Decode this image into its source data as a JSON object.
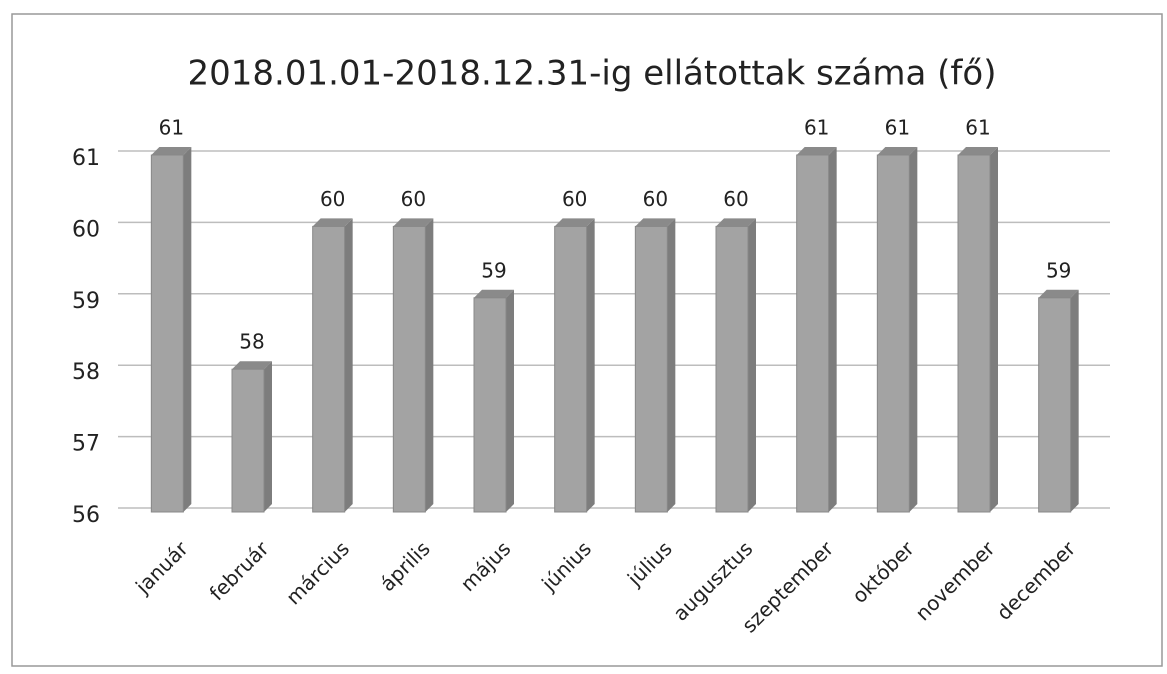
{
  "chart_data": {
    "type": "bar",
    "title": "2018.01.01-2018.12.31-ig ellátottak száma (fő)",
    "categories": [
      "január",
      "február",
      "március",
      "április",
      "május",
      "június",
      "július",
      "augusztus",
      "szeptember",
      "október",
      "november",
      "december"
    ],
    "values": [
      61,
      58,
      60,
      60,
      59,
      60,
      60,
      60,
      61,
      61,
      61,
      59
    ],
    "color": "#a3a3a3",
    "ylim": [
      56,
      61
    ],
    "yticks": [
      56,
      57,
      58,
      59,
      60,
      61
    ],
    "grid": true
  }
}
